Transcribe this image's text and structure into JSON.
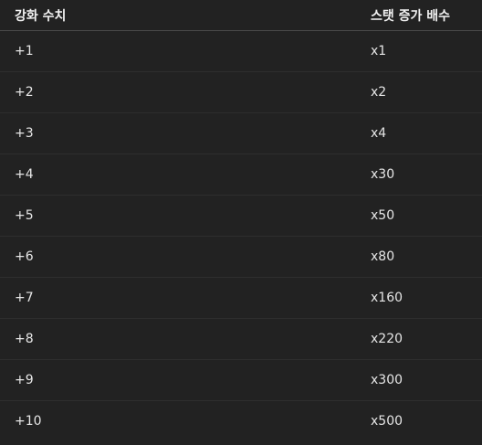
{
  "table": {
    "headers": [
      "강화 수치",
      "스탯 증가 배수"
    ],
    "rows": [
      [
        "+1",
        "x1"
      ],
      [
        "+2",
        "x2"
      ],
      [
        "+3",
        "x4"
      ],
      [
        "+4",
        "x30"
      ],
      [
        "+5",
        "x50"
      ],
      [
        "+6",
        "x80"
      ],
      [
        "+7",
        "x160"
      ],
      [
        "+8",
        "x220"
      ],
      [
        "+9",
        "x300"
      ],
      [
        "+10",
        "x500"
      ]
    ]
  },
  "colors": {
    "background": "#222222",
    "text": "#e6e6e6",
    "header_divider": "#4a4a4a",
    "row_divider": "#2e2e2e"
  }
}
